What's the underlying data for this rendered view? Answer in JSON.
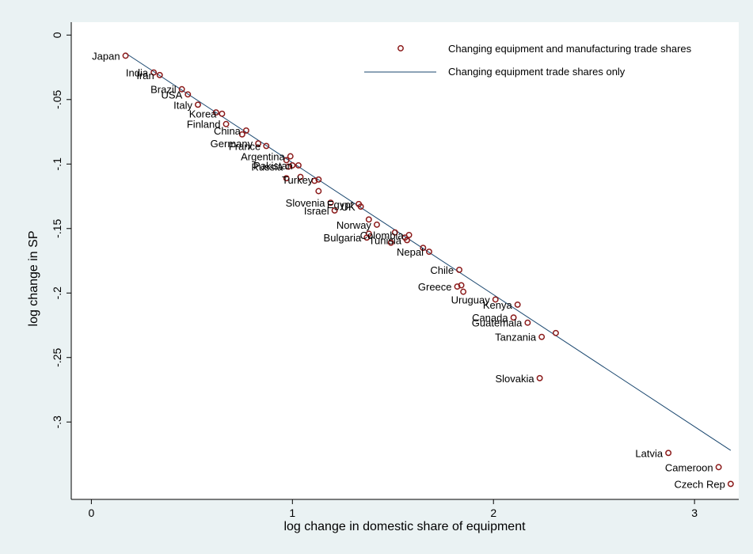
{
  "chart_data": {
    "type": "scatter",
    "xlabel": "log change in domestic share of equipment",
    "ylabel": "log change in SP",
    "xlim": [
      -0.1,
      3.22
    ],
    "ylim": [
      -0.36,
      0.01
    ],
    "xticks": [
      0,
      1,
      2,
      3
    ],
    "xtick_labels": [
      "0",
      "1",
      "2",
      "3"
    ],
    "yticks": [
      0,
      -0.05,
      -0.1,
      -0.15,
      -0.2,
      -0.25,
      -0.3
    ],
    "ytick_labels": [
      "0",
      "-.05",
      "-.1",
      "-.15",
      "-.2",
      "-.25",
      "-.3"
    ],
    "grid": false,
    "legend_position": "top-right",
    "colors": {
      "marker": "#8b1a1a",
      "line": "#1a476f",
      "plot_bg": "#ffffff",
      "outer_bg": "#eaf2f3"
    },
    "series": [
      {
        "name": "Changing equipment and manufacturing trade shares",
        "kind": "scatter",
        "points": [
          {
            "label": "Japan",
            "x": 0.17,
            "y": -0.016
          },
          {
            "label": "India",
            "x": 0.31,
            "y": -0.029
          },
          {
            "label": "Iran",
            "x": 0.34,
            "y": -0.031
          },
          {
            "label": "Brazil",
            "x": 0.45,
            "y": -0.042
          },
          {
            "label": "USA",
            "x": 0.48,
            "y": -0.046
          },
          {
            "label": "Italy",
            "x": 0.53,
            "y": -0.054
          },
          {
            "label": "",
            "x": 0.62,
            "y": -0.06
          },
          {
            "label": "Korea",
            "x": 0.65,
            "y": -0.061
          },
          {
            "label": "Finland",
            "x": 0.67,
            "y": -0.069
          },
          {
            "label": "",
            "x": 0.75,
            "y": -0.077
          },
          {
            "label": "China",
            "x": 0.77,
            "y": -0.074
          },
          {
            "label": "Germany",
            "x": 0.83,
            "y": -0.084
          },
          {
            "label": "France",
            "x": 0.87,
            "y": -0.086
          },
          {
            "label": "",
            "x": 0.97,
            "y": -0.097
          },
          {
            "label": "Argentina",
            "x": 0.99,
            "y": -0.094
          },
          {
            "label": "Russia",
            "x": 0.98,
            "y": -0.102
          },
          {
            "label": "",
            "x": 1.0,
            "y": -0.101
          },
          {
            "label": "Pakistan",
            "x": 1.03,
            "y": -0.101
          },
          {
            "label": "",
            "x": 0.97,
            "y": -0.111
          },
          {
            "label": "",
            "x": 1.04,
            "y": -0.11
          },
          {
            "label": "",
            "x": 1.11,
            "y": -0.113
          },
          {
            "label": "Turkey",
            "x": 1.13,
            "y": -0.112
          },
          {
            "label": "",
            "x": 1.13,
            "y": -0.121
          },
          {
            "label": "Slovenia",
            "x": 1.19,
            "y": -0.13
          },
          {
            "label": "Israel",
            "x": 1.21,
            "y": -0.136
          },
          {
            "label": "Egypt",
            "x": 1.33,
            "y": -0.131
          },
          {
            "label": "UK",
            "x": 1.34,
            "y": -0.133
          },
          {
            "label": "",
            "x": 1.38,
            "y": -0.143
          },
          {
            "label": "Norway",
            "x": 1.42,
            "y": -0.147
          },
          {
            "label": "",
            "x": 1.38,
            "y": -0.154
          },
          {
            "label": "Bulgaria",
            "x": 1.37,
            "y": -0.157
          },
          {
            "label": "",
            "x": 1.49,
            "y": -0.161
          },
          {
            "label": "",
            "x": 1.51,
            "y": -0.153
          },
          {
            "label": "",
            "x": 1.56,
            "y": -0.157
          },
          {
            "label": "Colombia",
            "x": 1.58,
            "y": -0.155
          },
          {
            "label": "Tunisia",
            "x": 1.57,
            "y": -0.159
          },
          {
            "label": "",
            "x": 1.65,
            "y": -0.165
          },
          {
            "label": "Nepal",
            "x": 1.68,
            "y": -0.168
          },
          {
            "label": "Chile",
            "x": 1.83,
            "y": -0.182
          },
          {
            "label": "Greece",
            "x": 1.82,
            "y": -0.195
          },
          {
            "label": "",
            "x": 1.84,
            "y": -0.194
          },
          {
            "label": "",
            "x": 1.85,
            "y": -0.199
          },
          {
            "label": "Uruguay",
            "x": 2.01,
            "y": -0.205
          },
          {
            "label": "Kenya",
            "x": 2.12,
            "y": -0.209
          },
          {
            "label": "Canada",
            "x": 2.1,
            "y": -0.219
          },
          {
            "label": "Guatemala",
            "x": 2.17,
            "y": -0.223
          },
          {
            "label": "",
            "x": 2.31,
            "y": -0.231
          },
          {
            "label": "Tanzania",
            "x": 2.24,
            "y": -0.234
          },
          {
            "label": "Slovakia",
            "x": 2.23,
            "y": -0.266
          },
          {
            "label": "Latvia",
            "x": 2.87,
            "y": -0.324
          },
          {
            "label": "Cameroon",
            "x": 3.12,
            "y": -0.335
          },
          {
            "label": "Czech Rep",
            "x": 3.18,
            "y": -0.348
          }
        ]
      },
      {
        "name": "Changing equipment trade shares only",
        "kind": "line",
        "points": [
          {
            "x": 0.17,
            "y": -0.014
          },
          {
            "x": 3.18,
            "y": -0.322
          }
        ]
      }
    ]
  }
}
